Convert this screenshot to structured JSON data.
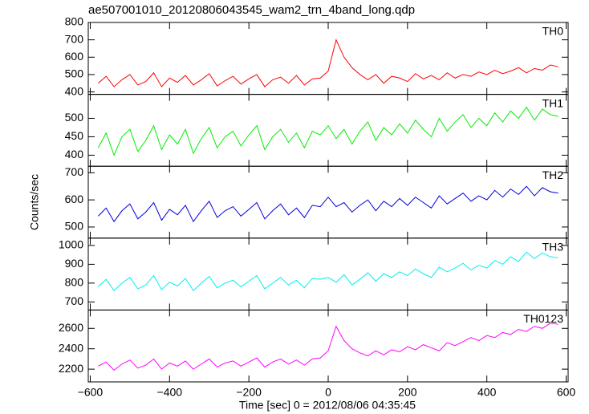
{
  "chart_data": {
    "type": "line",
    "title": "ae507001010_20120806043545_wam2_trn_4band_long.qdp",
    "x_label": "Time [sec] 0 = 2012/08/06 04:35:45",
    "y_label": "Counts/sec",
    "xlim": [
      -605,
      605
    ],
    "xticks": [
      {
        "value": -600,
        "label": "−600"
      },
      {
        "value": -400,
        "label": "−400"
      },
      {
        "value": -200,
        "label": "−200"
      },
      0,
      200,
      400,
      600
    ],
    "x": [
      -580,
      -560,
      -540,
      -520,
      -500,
      -480,
      -460,
      -440,
      -420,
      -400,
      -380,
      -360,
      -340,
      -320,
      -300,
      -280,
      -260,
      -240,
      -220,
      -200,
      -180,
      -160,
      -140,
      -120,
      -100,
      -80,
      -60,
      -40,
      -20,
      0,
      20,
      40,
      60,
      80,
      100,
      120,
      140,
      160,
      180,
      200,
      220,
      240,
      260,
      280,
      300,
      320,
      340,
      360,
      380,
      400,
      420,
      440,
      460,
      480,
      500,
      520,
      540,
      560,
      580
    ],
    "series": [
      {
        "name": "TH0",
        "color": "#ff0000",
        "ylim": [
          386,
          800
        ],
        "yticks": [
          400,
          500,
          600,
          700,
          800
        ],
        "values": [
          450,
          490,
          430,
          470,
          500,
          440,
          460,
          510,
          430,
          480,
          455,
          495,
          440,
          470,
          505,
          435,
          465,
          490,
          445,
          475,
          500,
          430,
          470,
          485,
          450,
          495,
          440,
          475,
          480,
          520,
          700,
          600,
          540,
          500,
          470,
          500,
          450,
          490,
          480,
          460,
          505,
          475,
          495,
          470,
          510,
          480,
          500,
          490,
          515,
          500,
          525,
          505,
          520,
          540,
          510,
          535,
          525,
          555,
          545
        ]
      },
      {
        "name": "TH1",
        "color": "#00ee00",
        "ylim": [
          370,
          565
        ],
        "yticks": [
          400,
          450,
          500
        ],
        "values": [
          420,
          460,
          400,
          450,
          470,
          410,
          440,
          480,
          415,
          455,
          430,
          470,
          405,
          445,
          475,
          420,
          450,
          465,
          425,
          455,
          480,
          415,
          450,
          470,
          435,
          460,
          420,
          465,
          455,
          480,
          445,
          470,
          430,
          465,
          490,
          440,
          475,
          455,
          485,
          460,
          495,
          470,
          450,
          500,
          465,
          490,
          510,
          475,
          500,
          480,
          515,
          490,
          520,
          500,
          530,
          495,
          525,
          510,
          505
        ]
      },
      {
        "name": "TH2",
        "color": "#0000dd",
        "ylim": [
          459,
          724
        ],
        "yticks": [
          500,
          600,
          700
        ],
        "values": [
          540,
          570,
          520,
          560,
          585,
          530,
          555,
          590,
          525,
          565,
          545,
          580,
          520,
          560,
          595,
          535,
          560,
          575,
          540,
          565,
          590,
          530,
          560,
          585,
          545,
          570,
          535,
          580,
          575,
          610,
          575,
          590,
          555,
          580,
          600,
          560,
          595,
          575,
          605,
          580,
          610,
          590,
          570,
          615,
          585,
          605,
          625,
          595,
          615,
          600,
          635,
          610,
          640,
          620,
          650,
          615,
          645,
          630,
          625
        ]
      },
      {
        "name": "TH3",
        "color": "#00eeee",
        "ylim": [
          657,
          1039
        ],
        "yticks": [
          700,
          800,
          900,
          1000
        ],
        "values": [
          780,
          820,
          760,
          800,
          830,
          770,
          790,
          840,
          765,
          805,
          785,
          825,
          760,
          800,
          835,
          775,
          800,
          815,
          780,
          810,
          840,
          770,
          800,
          830,
          790,
          815,
          775,
          825,
          820,
          830,
          805,
          845,
          790,
          820,
          855,
          810,
          850,
          830,
          860,
          840,
          875,
          850,
          830,
          885,
          860,
          880,
          905,
          870,
          895,
          880,
          920,
          900,
          940,
          915,
          965,
          930,
          960,
          940,
          935
        ]
      },
      {
        "name": "TH0123",
        "color": "#ff00ff",
        "ylim": [
          2075,
          2780
        ],
        "yticks": [
          2200,
          2400,
          2600
        ],
        "values": [
          2230,
          2270,
          2190,
          2250,
          2290,
          2210,
          2240,
          2300,
          2200,
          2260,
          2230,
          2280,
          2200,
          2250,
          2300,
          2220,
          2260,
          2280,
          2230,
          2270,
          2310,
          2220,
          2270,
          2300,
          2250,
          2290,
          2240,
          2300,
          2310,
          2380,
          2620,
          2480,
          2400,
          2360,
          2330,
          2380,
          2340,
          2390,
          2370,
          2420,
          2390,
          2440,
          2410,
          2380,
          2460,
          2430,
          2470,
          2510,
          2480,
          2530,
          2510,
          2560,
          2540,
          2590,
          2570,
          2620,
          2600,
          2650,
          2640
        ]
      }
    ]
  }
}
